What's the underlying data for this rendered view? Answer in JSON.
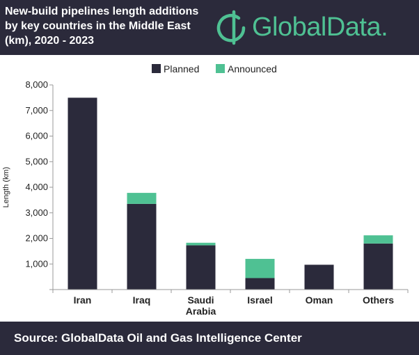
{
  "header": {
    "title_lines": [
      "New-build pipelines length additions",
      "by key countries in the Middle East",
      "(km), 2020 - 2023"
    ],
    "logo_text": "GlobalData."
  },
  "footer": {
    "source": "Source:  GlobalData Oil and Gas Intelligence Center"
  },
  "colors": {
    "planned": "#2b2a3b",
    "announced": "#4fc193",
    "background": "#2b2a3b",
    "axis": "#999999"
  },
  "chart_data": {
    "type": "bar",
    "stacked": true,
    "title": "New-build pipelines length additions by key countries in the Middle East (km), 2020 - 2023",
    "xlabel": "",
    "ylabel": "Length (km)",
    "ylim": [
      0,
      8000
    ],
    "yticks": [
      0,
      1000,
      2000,
      3000,
      4000,
      5000,
      6000,
      7000,
      8000
    ],
    "ytick_labels": [
      "",
      "1,000",
      "2,000",
      "3,000",
      "4,000",
      "5,000",
      "6,000",
      "7,000",
      "8,000"
    ],
    "categories": [
      [
        "Iran"
      ],
      [
        "Iraq"
      ],
      [
        "Saudi",
        "Arabia"
      ],
      [
        "Israel"
      ],
      [
        "Oman"
      ],
      [
        "Others"
      ]
    ],
    "series": [
      {
        "name": "Planned",
        "values": [
          7500,
          3350,
          1730,
          450,
          970,
          1800
        ]
      },
      {
        "name": "Announced",
        "values": [
          0,
          430,
          100,
          750,
          0,
          320
        ]
      }
    ],
    "legend": "top-center"
  }
}
